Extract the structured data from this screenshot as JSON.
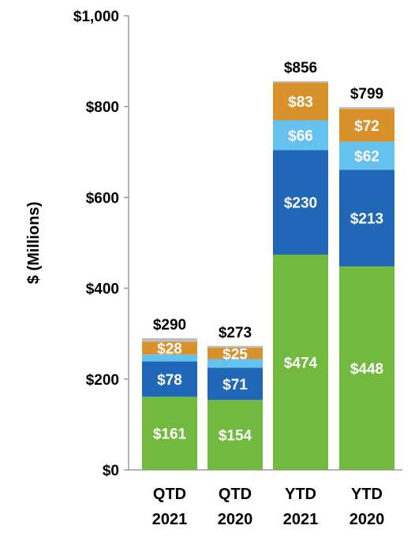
{
  "chart_data": {
    "type": "bar",
    "stacked": true,
    "title": "",
    "xlabel": "",
    "ylabel": "$ (Millions)",
    "ylim": [
      0,
      1000
    ],
    "yticks": [
      0,
      200,
      400,
      600,
      800,
      1000
    ],
    "ytick_labels": [
      "$0",
      "$200",
      "$400",
      "$600",
      "$800",
      "$1,000"
    ],
    "categories": [
      [
        "QTD",
        "2021"
      ],
      [
        "QTD",
        "2020"
      ],
      [
        "YTD",
        "2021"
      ],
      [
        "YTD",
        "2020"
      ]
    ],
    "series": [
      {
        "color": "#72B93F",
        "values": [
          161,
          154,
          474,
          448
        ],
        "labels": [
          "$161",
          "$154",
          "$474",
          "$448"
        ]
      },
      {
        "color": "#2167B7",
        "values": [
          78,
          71,
          230,
          213
        ],
        "labels": [
          "$78",
          "$71",
          "$230",
          "$213"
        ]
      },
      {
        "color": "#65C2EF",
        "values": [
          15,
          19,
          66,
          62
        ],
        "labels": [
          "",
          "",
          "$66",
          "$62"
        ]
      },
      {
        "color": "#D9912C",
        "values": [
          28,
          25,
          83,
          72
        ],
        "labels": [
          "$28",
          "$25",
          "$83",
          "$72"
        ]
      },
      {
        "color": "#BDBDBD",
        "values": [
          8,
          4,
          3,
          4
        ],
        "labels": [
          "",
          "",
          "",
          ""
        ]
      }
    ],
    "totals": [
      "$290",
      "$273",
      "$856",
      "$799"
    ],
    "grid": false,
    "legend": "none"
  }
}
